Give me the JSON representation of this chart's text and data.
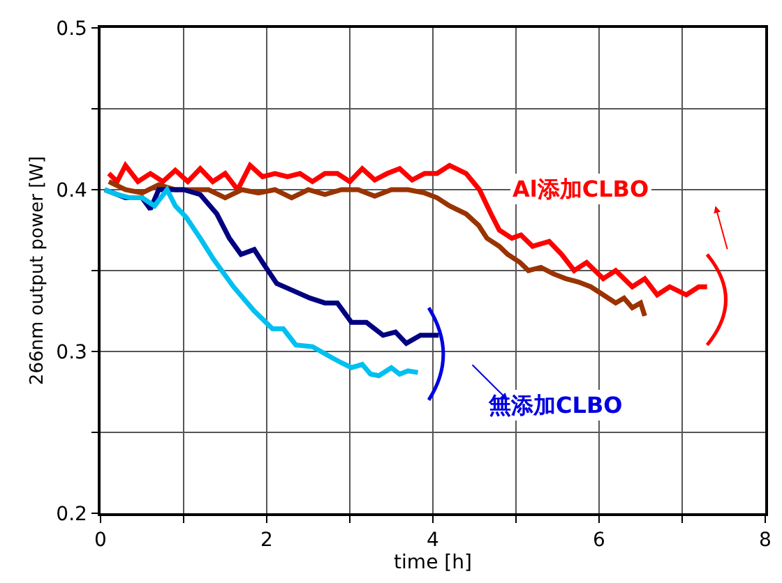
{
  "chart_data": {
    "type": "line",
    "xlabel": "time [h]",
    "ylabel": "266nm output power [W]",
    "xlim": [
      0,
      8
    ],
    "ylim": [
      0.2,
      0.5
    ],
    "xticks": [
      0,
      {
        "value": 1,
        "label": null
      },
      2,
      {
        "value": 3,
        "label": null
      },
      4,
      {
        "value": 5,
        "label": null
      },
      6,
      {
        "value": 7,
        "label": null
      },
      8
    ],
    "yticks": [
      0.2,
      {
        "value": 0.25,
        "label": null
      },
      0.3,
      {
        "value": 0.35,
        "label": null
      },
      0.4,
      {
        "value": 0.45,
        "label": null
      },
      0.5
    ],
    "grid": true,
    "marker": "none",
    "line_style": "solid",
    "series": [
      {
        "color": "#ff0000",
        "x": [
          0.1,
          0.2,
          0.3,
          0.45,
          0.6,
          0.75,
          0.9,
          1.05,
          1.2,
          1.35,
          1.5,
          1.65,
          1.8,
          1.95,
          2.1,
          2.25,
          2.4,
          2.55,
          2.7,
          2.85,
          3.0,
          3.15,
          3.3,
          3.45,
          3.6,
          3.75,
          3.9,
          4.05,
          4.2,
          4.4,
          4.56,
          4.7,
          4.8,
          4.95,
          5.06,
          5.2,
          5.4,
          5.55,
          5.7,
          5.85,
          6.05,
          6.2,
          6.4,
          6.55,
          6.7,
          6.85,
          7.05,
          7.2,
          7.3
        ],
        "values": [
          0.41,
          0.405,
          0.415,
          0.405,
          0.41,
          0.405,
          0.412,
          0.405,
          0.413,
          0.405,
          0.41,
          0.4,
          0.415,
          0.408,
          0.41,
          0.408,
          0.41,
          0.405,
          0.41,
          0.41,
          0.405,
          0.413,
          0.406,
          0.41,
          0.413,
          0.406,
          0.41,
          0.41,
          0.415,
          0.41,
          0.4,
          0.385,
          0.375,
          0.37,
          0.372,
          0.365,
          0.368,
          0.36,
          0.35,
          0.355,
          0.345,
          0.35,
          0.34,
          0.345,
          0.335,
          0.34,
          0.335,
          0.34,
          0.34
        ]
      },
      {
        "color": "#993300",
        "x": [
          0.1,
          0.3,
          0.5,
          0.7,
          0.9,
          1.1,
          1.3,
          1.5,
          1.7,
          1.9,
          2.1,
          2.3,
          2.5,
          2.7,
          2.9,
          3.1,
          3.3,
          3.5,
          3.7,
          3.9,
          4.05,
          4.2,
          4.4,
          4.55,
          4.65,
          4.8,
          4.9,
          5.05,
          5.15,
          5.3,
          5.45,
          5.6,
          5.75,
          5.9,
          6.05,
          6.2,
          6.3,
          6.4,
          6.5,
          6.55
        ],
        "values": [
          0.405,
          0.4,
          0.398,
          0.403,
          0.4,
          0.4,
          0.4,
          0.395,
          0.4,
          0.398,
          0.4,
          0.395,
          0.4,
          0.397,
          0.4,
          0.4,
          0.396,
          0.4,
          0.4,
          0.398,
          0.395,
          0.39,
          0.385,
          0.378,
          0.37,
          0.365,
          0.36,
          0.355,
          0.35,
          0.352,
          0.348,
          0.345,
          0.343,
          0.34,
          0.335,
          0.33,
          0.333,
          0.327,
          0.33,
          0.322
        ]
      },
      {
        "color": "#000080",
        "x": [
          0.05,
          0.3,
          0.5,
          0.6,
          0.7,
          0.8,
          1.0,
          1.2,
          1.4,
          1.55,
          1.69,
          1.85,
          1.95,
          2.12,
          2.3,
          2.52,
          2.7,
          2.85,
          3.02,
          3.2,
          3.4,
          3.55,
          3.68,
          3.85,
          4.07
        ],
        "values": [
          0.4,
          0.395,
          0.395,
          0.388,
          0.4,
          0.4,
          0.4,
          0.397,
          0.385,
          0.37,
          0.36,
          0.363,
          0.355,
          0.342,
          0.338,
          0.333,
          0.33,
          0.33,
          0.318,
          0.318,
          0.31,
          0.312,
          0.305,
          0.31,
          0.31
        ]
      },
      {
        "color": "#00c0f0",
        "x": [
          0.05,
          0.2,
          0.35,
          0.5,
          0.65,
          0.8,
          0.9,
          1.03,
          1.2,
          1.36,
          1.6,
          1.85,
          2.07,
          2.2,
          2.35,
          2.55,
          2.79,
          2.9,
          3.02,
          3.15,
          3.25,
          3.35,
          3.5,
          3.6,
          3.7,
          3.82
        ],
        "values": [
          0.4,
          0.397,
          0.395,
          0.395,
          0.39,
          0.4,
          0.39,
          0.383,
          0.37,
          0.357,
          0.34,
          0.325,
          0.314,
          0.314,
          0.304,
          0.303,
          0.296,
          0.293,
          0.29,
          0.292,
          0.286,
          0.285,
          0.29,
          0.286,
          0.288,
          0.287
        ]
      }
    ],
    "annotations": [
      "Al添加CLBO",
      "無添加CLBO"
    ]
  }
}
